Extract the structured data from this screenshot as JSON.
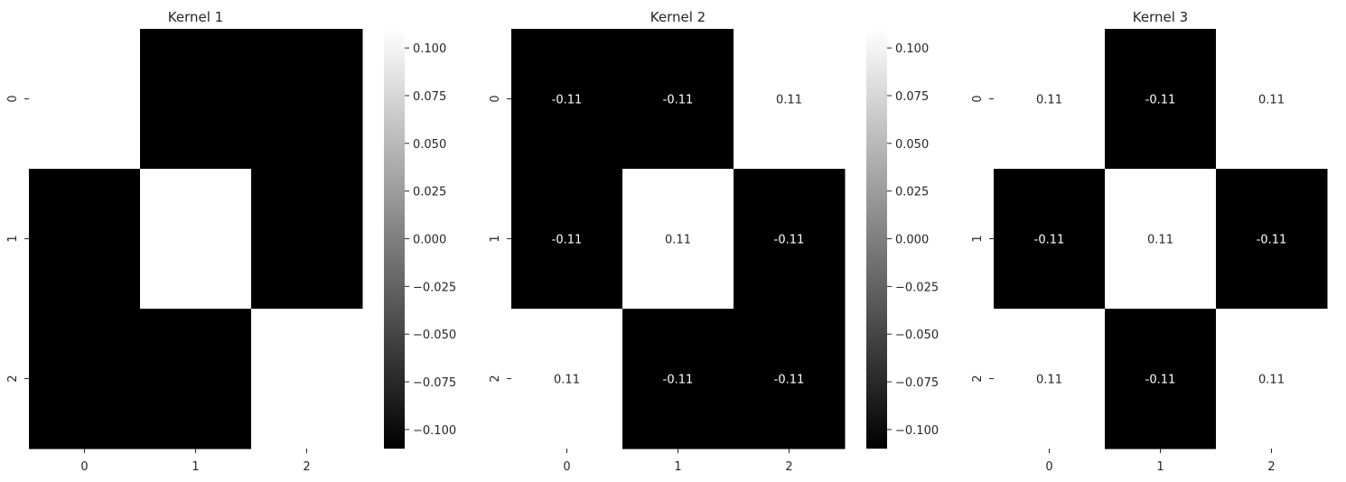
{
  "chart_data": [
    {
      "type": "heatmap",
      "title": "Kernel 1",
      "rows": [
        "0",
        "1",
        "2"
      ],
      "cols": [
        "0",
        "1",
        "2"
      ],
      "values": [
        [
          0.11,
          -0.11,
          -0.11
        ],
        [
          -0.11,
          0.11,
          -0.11
        ],
        [
          -0.11,
          -0.11,
          0.11
        ]
      ],
      "annotated": false,
      "annotations": [],
      "colormap": "gray",
      "vmin": -0.11,
      "vmax": 0.11,
      "colorbar": true,
      "colorbar_ticks": [
        "0.100",
        "0.075",
        "0.050",
        "0.025",
        "0.000",
        "−0.025",
        "−0.050",
        "−0.075",
        "−0.100"
      ]
    },
    {
      "type": "heatmap",
      "title": "Kernel 2",
      "rows": [
        "0",
        "1",
        "2"
      ],
      "cols": [
        "0",
        "1",
        "2"
      ],
      "values": [
        [
          -0.11,
          -0.11,
          0.11
        ],
        [
          -0.11,
          0.11,
          -0.11
        ],
        [
          0.11,
          -0.11,
          -0.11
        ]
      ],
      "annotated": true,
      "annotations": [
        [
          "-0.11",
          "-0.11",
          "0.11"
        ],
        [
          "-0.11",
          "0.11",
          "-0.11"
        ],
        [
          "0.11",
          "-0.11",
          "-0.11"
        ]
      ],
      "colormap": "gray",
      "vmin": -0.11,
      "vmax": 0.11,
      "colorbar": true,
      "colorbar_ticks": [
        "0.100",
        "0.075",
        "0.050",
        "0.025",
        "0.000",
        "−0.025",
        "−0.050",
        "−0.075",
        "−0.100"
      ]
    },
    {
      "type": "heatmap",
      "title": "Kernel 3",
      "rows": [
        "0",
        "1",
        "2"
      ],
      "cols": [
        "0",
        "1",
        "2"
      ],
      "values": [
        [
          0.11,
          -0.11,
          0.11
        ],
        [
          -0.11,
          0.11,
          -0.11
        ],
        [
          0.11,
          -0.11,
          0.11
        ]
      ],
      "annotated": true,
      "annotations": [
        [
          "0.11",
          "-0.11",
          "0.11"
        ],
        [
          "-0.11",
          "0.11",
          "-0.11"
        ],
        [
          "0.11",
          "-0.11",
          "0.11"
        ]
      ],
      "colormap": "gray",
      "vmin": -0.11,
      "vmax": 0.11,
      "colorbar": false,
      "colorbar_ticks": []
    }
  ],
  "colors": {
    "low": "#000000",
    "high": "#ffffff",
    "text_on_dark": "#ffffff",
    "text_on_light": "#262626",
    "axis_text": "#262626"
  }
}
